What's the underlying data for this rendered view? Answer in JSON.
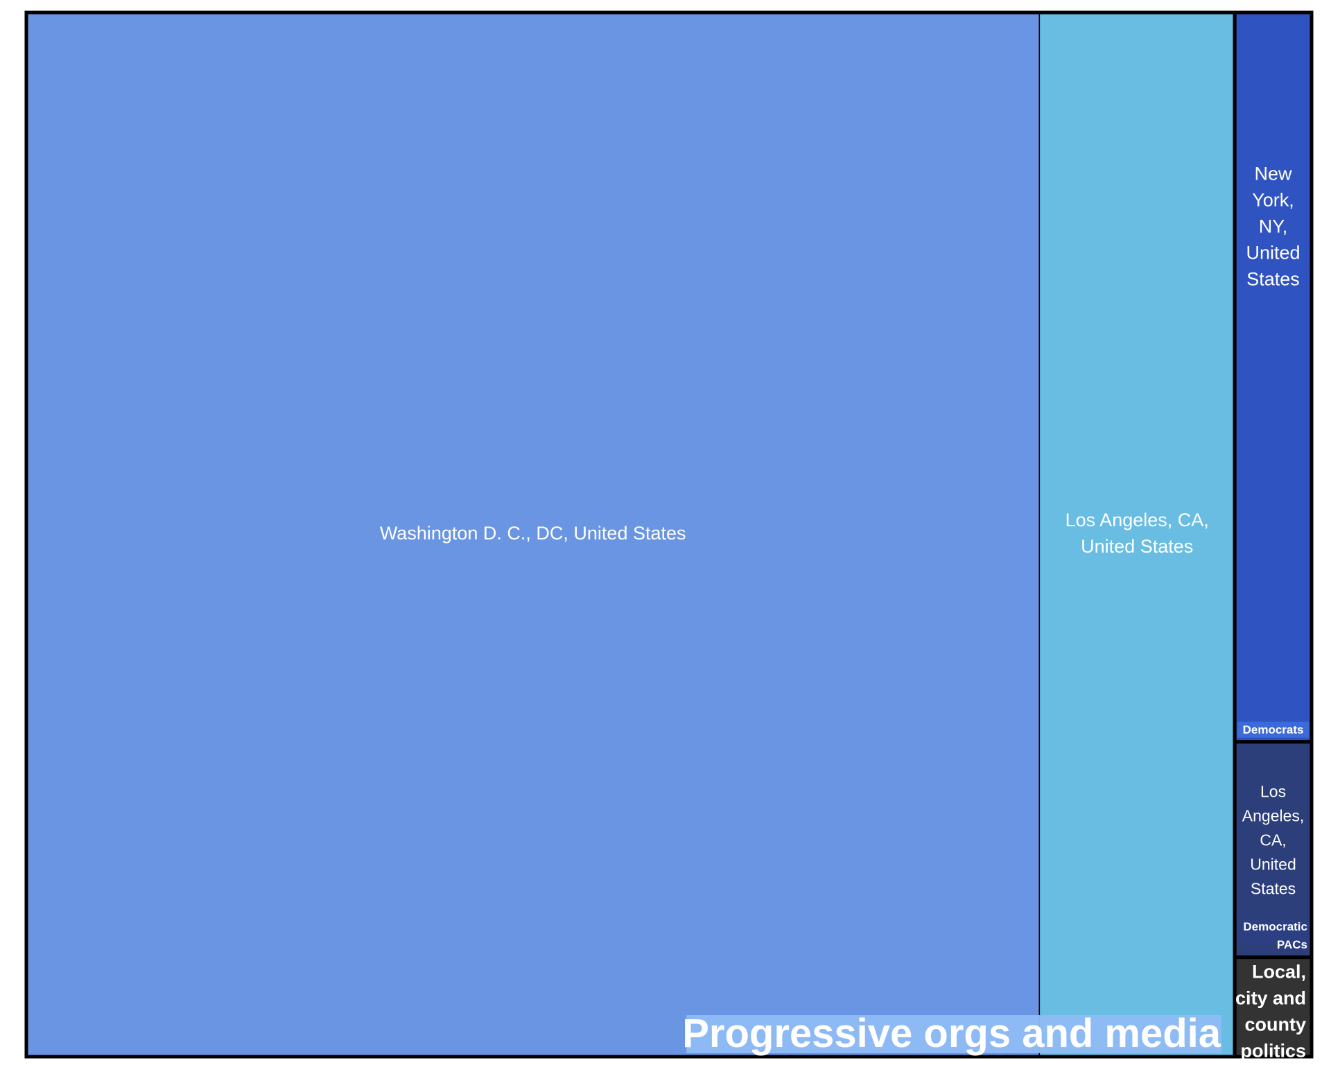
{
  "chart_data": {
    "type": "treemap",
    "groups": [
      {
        "name": "Progressive orgs and media",
        "label_color": "#8fbcf5",
        "children": [
          {
            "name": "Washington D. C., DC, United States",
            "lines": [
              "Washington D. C., DC, United States"
            ],
            "color": "#6a95e2",
            "value": 83.0
          },
          {
            "name": "Los Angeles, CA, United States",
            "lines": [
              "Los Angeles, CA,",
              "United States"
            ],
            "color": "#69bde3",
            "value": 16.0
          }
        ]
      },
      {
        "name": "Democrats",
        "label_color": "#3d6ad9",
        "children": [
          {
            "name": "New York, NY, United States",
            "lines": [
              "New",
              "York,",
              "NY,",
              "United",
              "States"
            ],
            "color": "#2f53c0",
            "value": 4.4
          }
        ]
      },
      {
        "name": "Democratic PACs",
        "name_lines": [
          "Democratic",
          "PACs"
        ],
        "label_color": "#2b3f82",
        "children": [
          {
            "name": "Los Angeles, CA, United States",
            "lines": [
              "Los",
              "Angeles,",
              "CA,",
              "United",
              "States"
            ],
            "color": "#2c3f7a",
            "value": 1.3
          }
        ]
      },
      {
        "name": "Local, city and county politics",
        "name_lines": [
          "Local,",
          "city and",
          "county",
          "politics"
        ],
        "label_color": "#333333",
        "children": [
          {
            "name": "",
            "lines": [],
            "color": "#333333",
            "value": 0.6
          }
        ]
      }
    ]
  }
}
